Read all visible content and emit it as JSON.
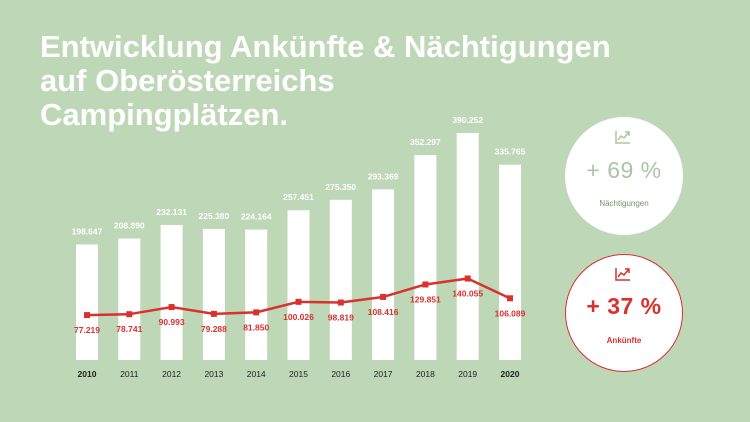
{
  "title": {
    "line1": "Entwicklung Ankünfte & Nächtigungen",
    "line2": "auf Oberösterreichs",
    "line3": "Campingplätzen."
  },
  "colors": {
    "background": "#bdd7b7",
    "bar": "#ffffff",
    "line": "#d8312e",
    "accent_green": "#abc5a4"
  },
  "chart_data": {
    "type": "bar",
    "categories": [
      "2010",
      "2011",
      "2012",
      "2013",
      "2014",
      "2015",
      "2016",
      "2017",
      "2018",
      "2019",
      "2020"
    ],
    "bold_categories": [
      "2010",
      "2020"
    ],
    "ylim": [
      0,
      390252
    ],
    "series": [
      {
        "name": "Nächtigungen",
        "type": "bar",
        "color": "#ffffff",
        "values": [
          198647,
          208890,
          232131,
          225380,
          224164,
          257451,
          275350,
          293369,
          352297,
          390252,
          335765
        ],
        "labels": [
          "198.647",
          "208.890",
          "232.131",
          "225.380",
          "224.164",
          "257.451",
          "275.350",
          "293.369",
          "352.297",
          "390.252",
          "335.765"
        ]
      },
      {
        "name": "Ankünfte",
        "type": "line",
        "color": "#d8312e",
        "values": [
          77219,
          78741,
          90993,
          79288,
          81850,
          100026,
          98819,
          108416,
          129851,
          140055,
          106089
        ],
        "labels": [
          "77.219",
          "78.741",
          "90.993",
          "79.288",
          "81.850",
          "100.026",
          "98.819",
          "108.416",
          "129.851",
          "140.055",
          "106.089"
        ]
      }
    ]
  },
  "stats": [
    {
      "icon": "chart-trend-icon",
      "value": "+ 69 %",
      "label": "Nächtigungen"
    },
    {
      "icon": "chart-trend-icon",
      "value": "+ 37 %",
      "label": "Ankünfte"
    }
  ]
}
